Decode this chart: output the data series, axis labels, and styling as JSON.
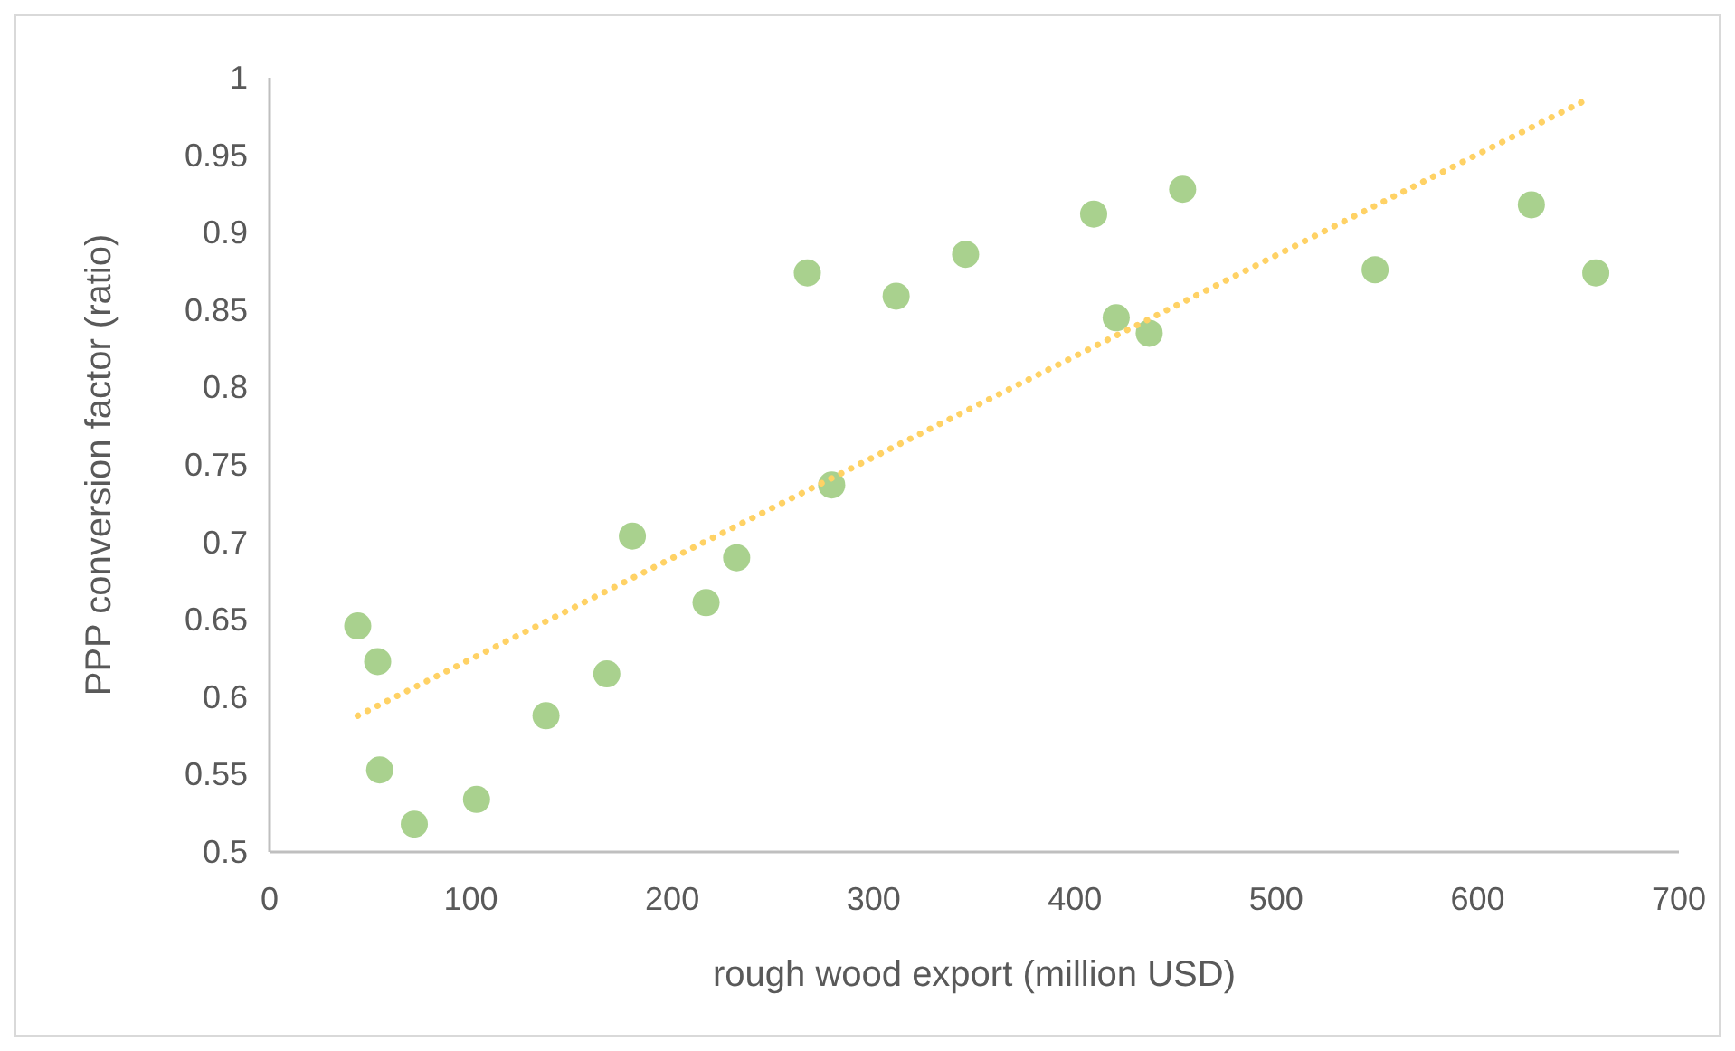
{
  "chart_data": {
    "type": "scatter",
    "xlabel": "rough wood export (million USD)",
    "ylabel": "PPP conversion factor (ratio)",
    "xlim": [
      0,
      700
    ],
    "xticks": [
      0,
      100,
      200,
      300,
      400,
      500,
      600,
      700
    ],
    "ylim": [
      0.5,
      1
    ],
    "yticks": [
      0.5,
      0.55,
      0.6,
      0.65,
      0.7,
      0.75,
      0.8,
      0.85,
      0.9,
      0.95,
      1
    ],
    "grid": false,
    "marker": "circle",
    "series": [
      {
        "color": "#a9d18e",
        "x": [
          43.8,
          53.7,
          54.7,
          71.9,
          102.8,
          137.3,
          167.5,
          180.2,
          216.8,
          232,
          267.1,
          279.2,
          311.2,
          345.7,
          409.3,
          420.5,
          436.9,
          453.5,
          549.1,
          626.7,
          658.7
        ],
        "values": [
          0.646,
          0.623,
          0.553,
          0.518,
          0.534,
          0.588,
          0.615,
          0.704,
          0.661,
          0.69,
          0.874,
          0.737,
          0.859,
          0.886,
          0.912,
          0.845,
          0.835,
          0.928,
          0.876,
          0.918,
          0.874
        ]
      },
      {
        "type": "line",
        "color": "#ffd265",
        "line_style": "dotted",
        "marker": "none",
        "x": [
          43.8,
          654.4
        ],
        "values": [
          0.588,
          0.986
        ]
      }
    ]
  }
}
